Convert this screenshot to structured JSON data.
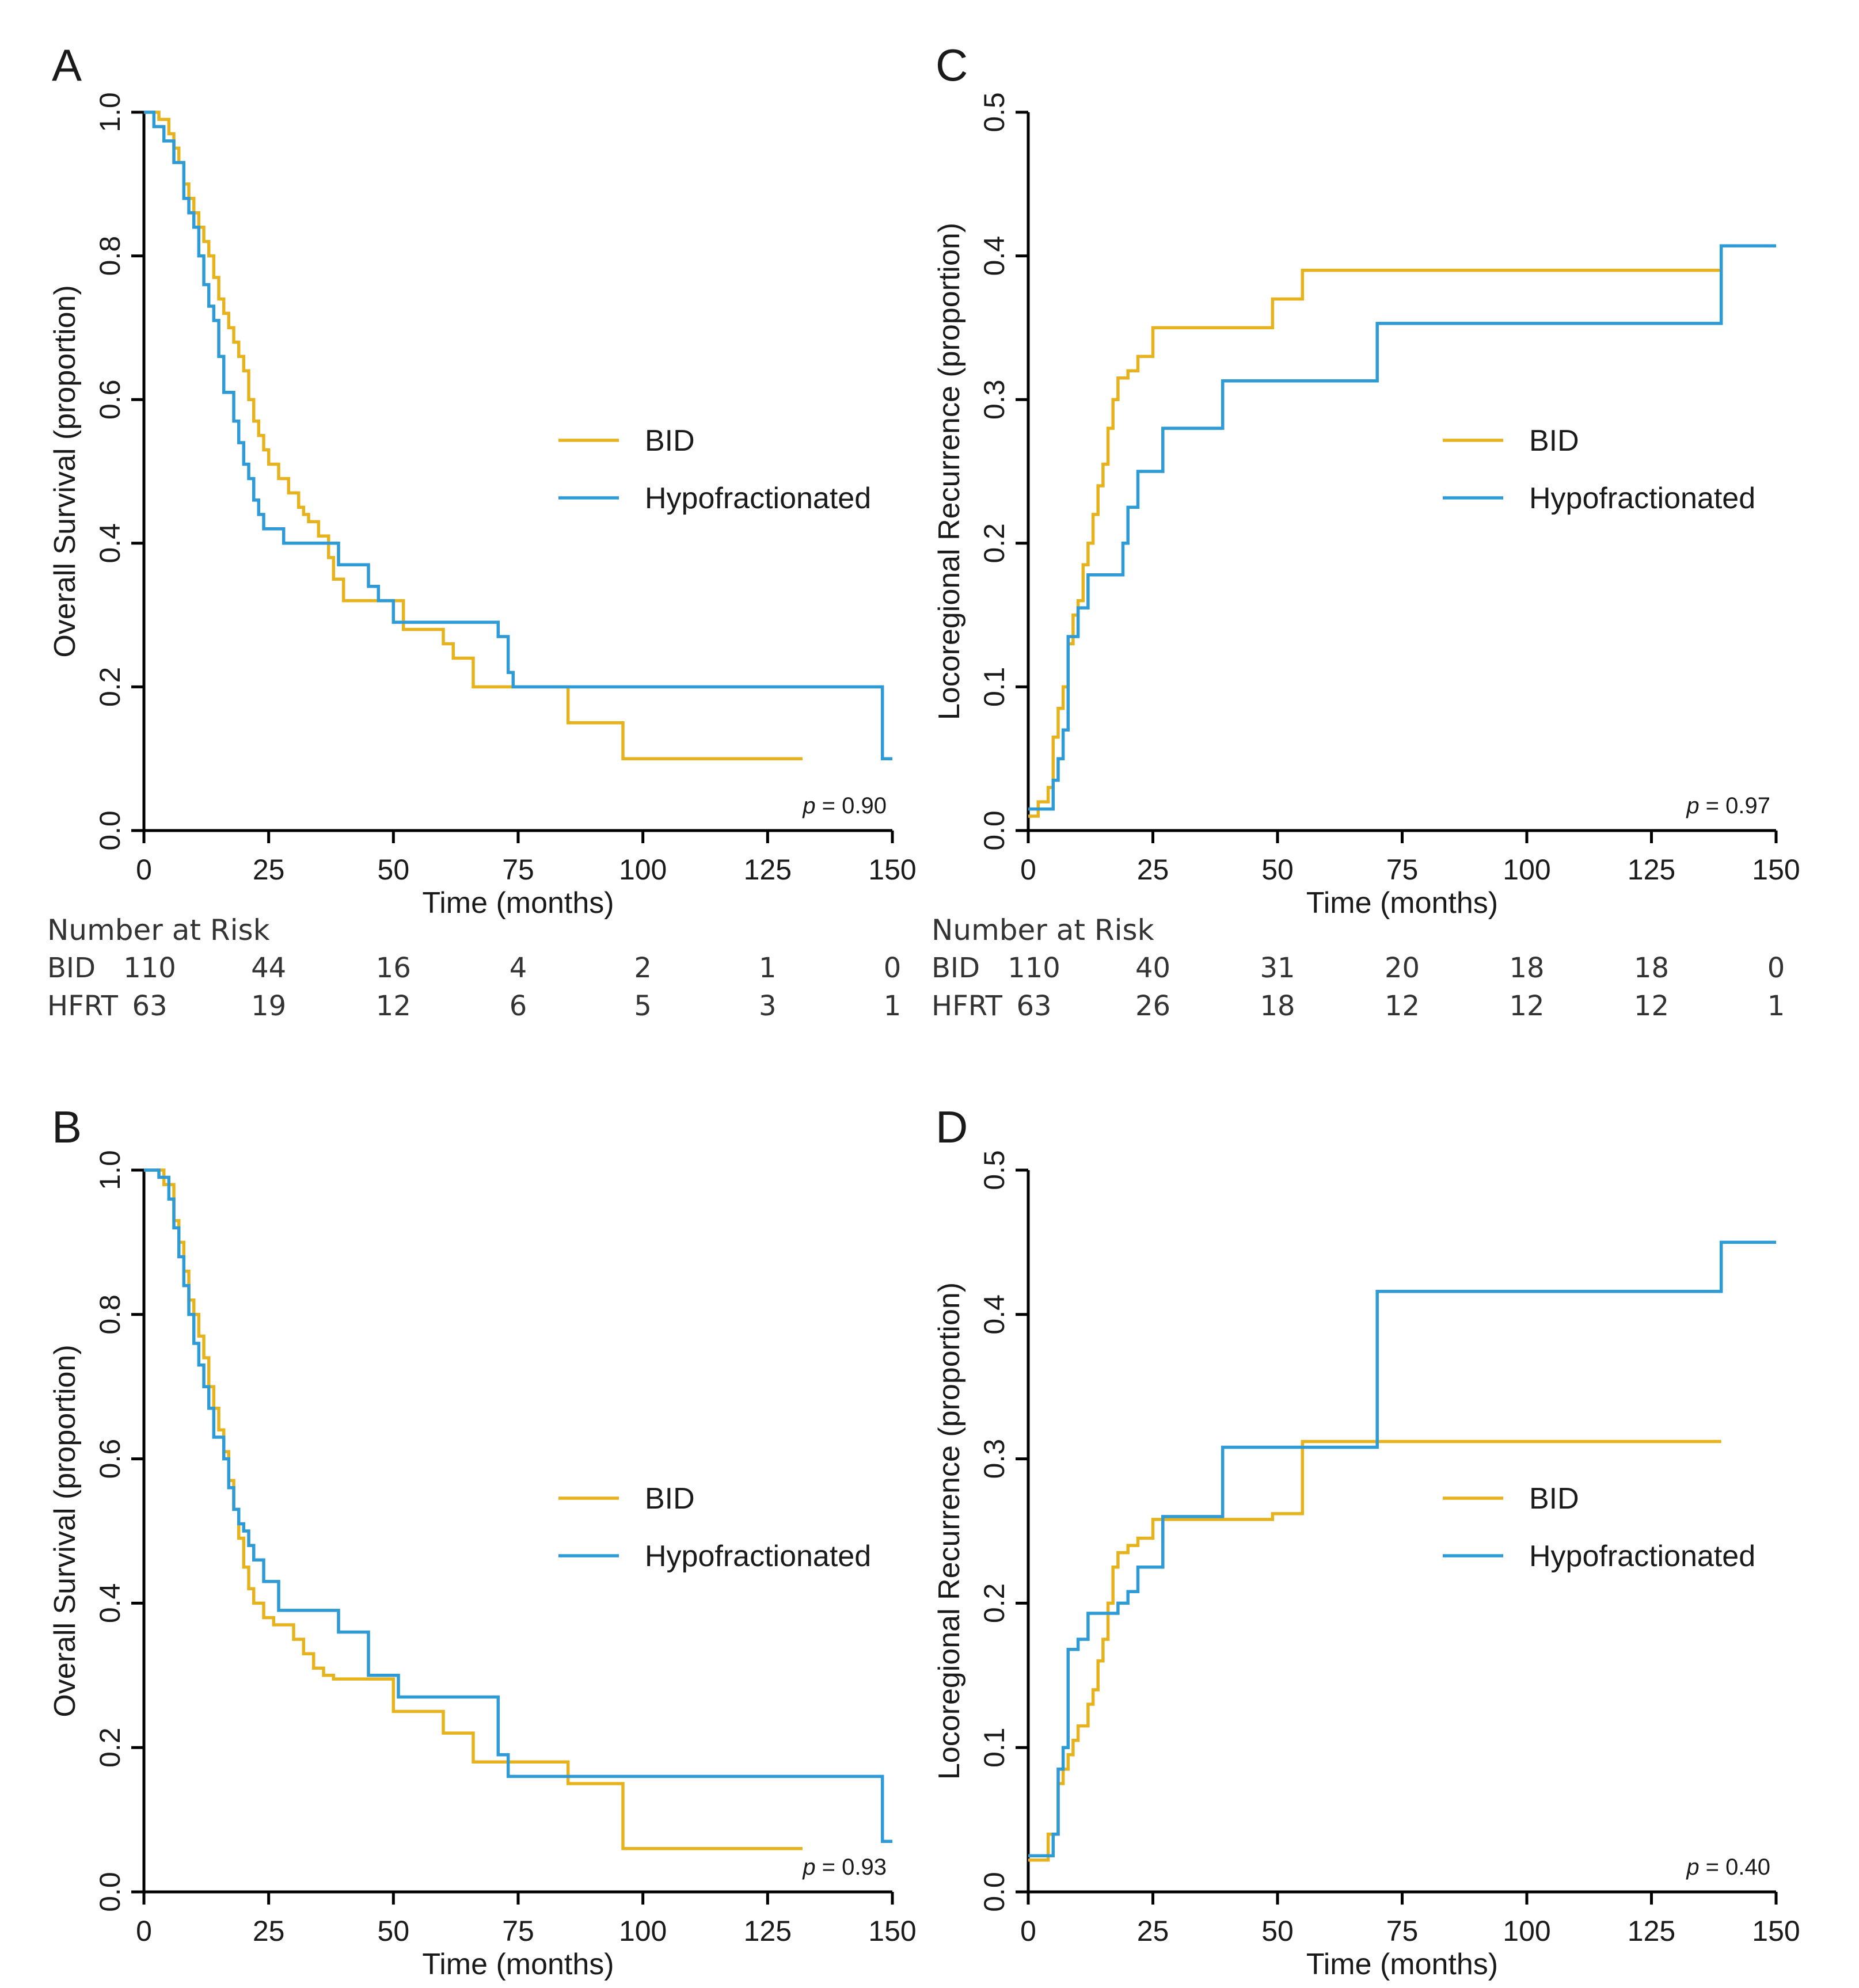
{
  "colors": {
    "bid": "#E6B31E",
    "hfrt": "#2F9BD6",
    "axis": "#000000",
    "text": "#1a1a1a"
  },
  "chart_data": [
    {
      "id": "A",
      "panel_label": "A",
      "type": "line",
      "step": true,
      "title": "",
      "xlabel": "Time (months)",
      "ylabel": "Overall Survival (proportion)",
      "xlim": [
        0,
        150
      ],
      "ylim": [
        0,
        1
      ],
      "xticks": [
        0,
        25,
        50,
        75,
        100,
        125,
        150
      ],
      "yticks": [
        0.0,
        0.2,
        0.4,
        0.6,
        0.8,
        1.0
      ],
      "ytick_labels": [
        "0.0",
        "0.2",
        "0.4",
        "0.6",
        "0.8",
        "1.0"
      ],
      "legend": [
        "BID",
        "Hypofractionated"
      ],
      "legend_position": "center-right",
      "p_label": "p",
      "p_value": "= 0.90",
      "series": [
        {
          "name": "BID",
          "color": "#E6B31E",
          "x": [
            0,
            3,
            5,
            6,
            7,
            8,
            9,
            10,
            11,
            12,
            13,
            14,
            15,
            16,
            17,
            18,
            19,
            20,
            21,
            22,
            23,
            24,
            25,
            27,
            29,
            31,
            32,
            33,
            35,
            37,
            38,
            40,
            50,
            52,
            60,
            62,
            66,
            72,
            76,
            85,
            96,
            132
          ],
          "y": [
            1.0,
            0.99,
            0.97,
            0.95,
            0.93,
            0.9,
            0.88,
            0.86,
            0.84,
            0.82,
            0.8,
            0.77,
            0.74,
            0.72,
            0.7,
            0.68,
            0.66,
            0.64,
            0.6,
            0.57,
            0.55,
            0.53,
            0.51,
            0.49,
            0.47,
            0.45,
            0.44,
            0.43,
            0.41,
            0.38,
            0.35,
            0.32,
            0.32,
            0.28,
            0.26,
            0.24,
            0.2,
            0.2,
            0.2,
            0.15,
            0.1,
            0.1
          ]
        },
        {
          "name": "Hypofractionated",
          "color": "#2F9BD6",
          "x": [
            0,
            2,
            4,
            6,
            8,
            9,
            10,
            11,
            12,
            13,
            14,
            15,
            16,
            18,
            19,
            20,
            21,
            22,
            23,
            24,
            26,
            28,
            30,
            32,
            39,
            45,
            47,
            50,
            71,
            73,
            74,
            148,
            150
          ],
          "y": [
            1.0,
            0.98,
            0.96,
            0.93,
            0.88,
            0.86,
            0.84,
            0.8,
            0.76,
            0.73,
            0.71,
            0.66,
            0.61,
            0.57,
            0.54,
            0.51,
            0.49,
            0.46,
            0.44,
            0.42,
            0.42,
            0.4,
            0.4,
            0.4,
            0.37,
            0.34,
            0.32,
            0.29,
            0.27,
            0.22,
            0.2,
            0.1,
            0.1
          ]
        }
      ],
      "risk_table": {
        "title": "Number at Risk",
        "times": [
          0,
          25,
          50,
          75,
          100,
          125,
          150
        ],
        "rows": [
          {
            "label": "BID",
            "values": [
              "110",
              "44",
              "16",
              "4",
              "2",
              "1",
              "0"
            ]
          },
          {
            "label": "HFRT",
            "values": [
              "63",
              "19",
              "12",
              "6",
              "5",
              "3",
              "1"
            ]
          }
        ]
      }
    },
    {
      "id": "C",
      "panel_label": "C",
      "type": "line",
      "step": true,
      "title": "",
      "xlabel": "Time (months)",
      "ylabel": "Locoregional Recurrence (proportion)",
      "xlim": [
        0,
        150
      ],
      "ylim": [
        0,
        0.5
      ],
      "xticks": [
        0,
        25,
        50,
        75,
        100,
        125,
        150
      ],
      "yticks": [
        0.0,
        0.1,
        0.2,
        0.3,
        0.4,
        0.5
      ],
      "ytick_labels": [
        "0.0",
        "0.1",
        "0.2",
        "0.3",
        "0.4",
        "0.5"
      ],
      "legend": [
        "BID",
        "Hypofractionated"
      ],
      "legend_position": "center-right",
      "p_label": "p",
      "p_value": "= 0.97",
      "series": [
        {
          "name": "BID",
          "color": "#E6B31E",
          "x": [
            0,
            2,
            4,
            5,
            6,
            7,
            8,
            9,
            10,
            11,
            12,
            13,
            14,
            15,
            16,
            17,
            18,
            20,
            22,
            25,
            49,
            55,
            139
          ],
          "y": [
            0.01,
            0.02,
            0.03,
            0.065,
            0.085,
            0.1,
            0.13,
            0.15,
            0.16,
            0.185,
            0.2,
            0.22,
            0.24,
            0.255,
            0.28,
            0.3,
            0.315,
            0.32,
            0.33,
            0.35,
            0.37,
            0.39,
            0.39
          ]
        },
        {
          "name": "Hypofractionated",
          "color": "#2F9BD6",
          "x": [
            0,
            5,
            6,
            7,
            8,
            10,
            12,
            19,
            20,
            22,
            27,
            39,
            70,
            139,
            150
          ],
          "y": [
            0.015,
            0.035,
            0.05,
            0.07,
            0.135,
            0.155,
            0.178,
            0.2,
            0.225,
            0.25,
            0.28,
            0.313,
            0.353,
            0.407,
            0.407
          ]
        }
      ],
      "risk_table": {
        "title": "Number at Risk",
        "times": [
          0,
          25,
          50,
          75,
          100,
          125,
          150
        ],
        "rows": [
          {
            "label": "BID",
            "values": [
              "110",
              "40",
              "31",
              "20",
              "18",
              "18",
              "0"
            ]
          },
          {
            "label": "HFRT",
            "values": [
              "63",
              "26",
              "18",
              "12",
              "12",
              "12",
              "1"
            ]
          }
        ]
      }
    },
    {
      "id": "B",
      "panel_label": "B",
      "type": "line",
      "step": true,
      "title": "",
      "xlabel": "Time (months)",
      "ylabel": "Overall Survival (proportion)",
      "xlim": [
        0,
        150
      ],
      "ylim": [
        0,
        1
      ],
      "xticks": [
        0,
        25,
        50,
        75,
        100,
        125,
        150
      ],
      "yticks": [
        0.0,
        0.2,
        0.4,
        0.6,
        0.8,
        1.0
      ],
      "ytick_labels": [
        "0.0",
        "0.2",
        "0.4",
        "0.6",
        "0.8",
        "1.0"
      ],
      "legend": [
        "BID",
        "Hypofractionated"
      ],
      "legend_position": "center-right",
      "p_label": "p",
      "p_value": "= 0.93",
      "series": [
        {
          "name": "BID",
          "color": "#E6B31E",
          "x": [
            0,
            4,
            6,
            7,
            8,
            9,
            10,
            11,
            12,
            13,
            14,
            15,
            16,
            17,
            18,
            19,
            20,
            21,
            22,
            24,
            26,
            30,
            32,
            34,
            36,
            38,
            50,
            52,
            60,
            66,
            85,
            96,
            132
          ],
          "y": [
            1.0,
            0.98,
            0.93,
            0.9,
            0.86,
            0.82,
            0.8,
            0.77,
            0.74,
            0.7,
            0.67,
            0.64,
            0.61,
            0.57,
            0.53,
            0.49,
            0.45,
            0.42,
            0.4,
            0.38,
            0.37,
            0.35,
            0.33,
            0.31,
            0.3,
            0.295,
            0.25,
            0.25,
            0.22,
            0.18,
            0.15,
            0.06,
            0.06
          ]
        },
        {
          "name": "Hypofractionated",
          "color": "#2F9BD6",
          "x": [
            0,
            3,
            5,
            6,
            7,
            8,
            9,
            10,
            11,
            12,
            13,
            14,
            16,
            17,
            18,
            19,
            20,
            21,
            22,
            24,
            27,
            39,
            45,
            51,
            71,
            73,
            148,
            150
          ],
          "y": [
            1.0,
            0.99,
            0.96,
            0.92,
            0.88,
            0.84,
            0.8,
            0.76,
            0.73,
            0.7,
            0.67,
            0.63,
            0.6,
            0.56,
            0.53,
            0.51,
            0.5,
            0.48,
            0.46,
            0.43,
            0.39,
            0.36,
            0.3,
            0.27,
            0.19,
            0.16,
            0.07,
            0.07
          ]
        }
      ]
    },
    {
      "id": "D",
      "panel_label": "D",
      "type": "line",
      "step": true,
      "title": "",
      "xlabel": "Time (months)",
      "ylabel": "Locoregional Recurrence (proportion)",
      "xlim": [
        0,
        150
      ],
      "ylim": [
        0,
        0.5
      ],
      "xticks": [
        0,
        25,
        50,
        75,
        100,
        125,
        150
      ],
      "yticks": [
        0.0,
        0.1,
        0.2,
        0.3,
        0.4,
        0.5
      ],
      "ytick_labels": [
        "0.0",
        "0.1",
        "0.2",
        "0.3",
        "0.4",
        "0.5"
      ],
      "legend": [
        "BID",
        "Hypofractionated"
      ],
      "legend_position": "center-right",
      "p_label": "p",
      "p_value": "= 0.40",
      "series": [
        {
          "name": "BID",
          "color": "#E6B31E",
          "x": [
            0,
            4,
            6,
            7,
            8,
            9,
            10,
            12,
            13,
            14,
            15,
            16,
            17,
            18,
            20,
            22,
            25,
            49,
            55,
            139
          ],
          "y": [
            0.022,
            0.04,
            0.075,
            0.085,
            0.095,
            0.105,
            0.115,
            0.13,
            0.14,
            0.16,
            0.175,
            0.2,
            0.225,
            0.235,
            0.24,
            0.245,
            0.258,
            0.262,
            0.312,
            0.312
          ]
        },
        {
          "name": "Hypofractionated",
          "color": "#2F9BD6",
          "x": [
            0,
            5,
            6,
            7,
            8,
            10,
            12,
            18,
            20,
            22,
            27,
            39,
            70,
            139,
            150
          ],
          "y": [
            0.025,
            0.04,
            0.085,
            0.1,
            0.168,
            0.175,
            0.193,
            0.2,
            0.208,
            0.225,
            0.26,
            0.308,
            0.416,
            0.45,
            0.45
          ]
        }
      ]
    }
  ]
}
